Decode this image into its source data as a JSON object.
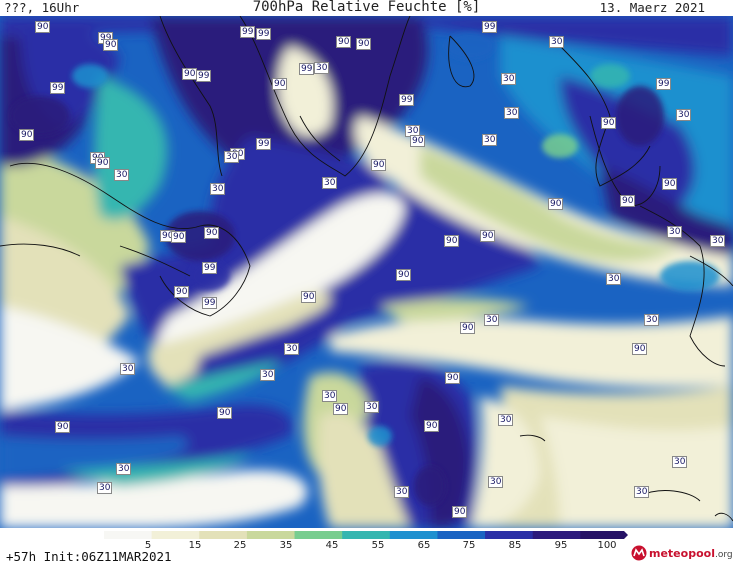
{
  "header": {
    "left_text": "???, 16Uhr",
    "title": "700hPa Relative Feuchte [%]",
    "date": "13. Maerz 2021"
  },
  "map": {
    "field": "relative humidity 700hPa",
    "contour_labels": [
      "90",
      "99",
      "90",
      "99",
      "99",
      "90",
      "90",
      "99",
      "90",
      "30",
      "90",
      "99",
      "90",
      "99",
      "90",
      "30",
      "90",
      "30",
      "99",
      "90",
      "30",
      "90",
      "90",
      "90",
      "99",
      "90",
      "99",
      "90",
      "99",
      "30",
      "90",
      "90",
      "30",
      "99",
      "30",
      "30",
      "30",
      "90",
      "99",
      "30",
      "90",
      "90",
      "90",
      "30",
      "30",
      "30",
      "90",
      "90",
      "90",
      "30",
      "30",
      "90",
      "30",
      "90",
      "30",
      "30",
      "90",
      "30",
      "90",
      "30",
      "90",
      "30",
      "30",
      "90",
      "90",
      "30",
      "30",
      "30",
      "30",
      "90",
      "30",
      "30"
    ],
    "colors": {
      "dry": "#f7f7f2",
      "c15": "#f2f0d8",
      "c25": "#e3e1b9",
      "c35": "#c9d89c",
      "c45": "#78cd8f",
      "c55": "#35b6b0",
      "c65": "#1f90cf",
      "c75": "#1a63c2",
      "c85": "#2a2fa6",
      "c95": "#2c1a7c",
      "land_outline": "#111111"
    }
  },
  "colorbar": {
    "ticks": [
      "5",
      "15",
      "25",
      "35",
      "45",
      "55",
      "65",
      "75",
      "85",
      "95",
      "100"
    ],
    "colors": [
      "#f7f7f4",
      "#f2f0d8",
      "#e3e1b9",
      "#c9d89c",
      "#78cd8f",
      "#35b6b0",
      "#1f90cf",
      "#1a63c2",
      "#2a2fa6",
      "#2c1a7c",
      "#261266"
    ]
  },
  "footer": {
    "run_info": "+57h Init:06Z11MAR2021",
    "logo_brand": "meteo",
    "logo_brand2": "pool",
    "logo_tld": ".org"
  }
}
